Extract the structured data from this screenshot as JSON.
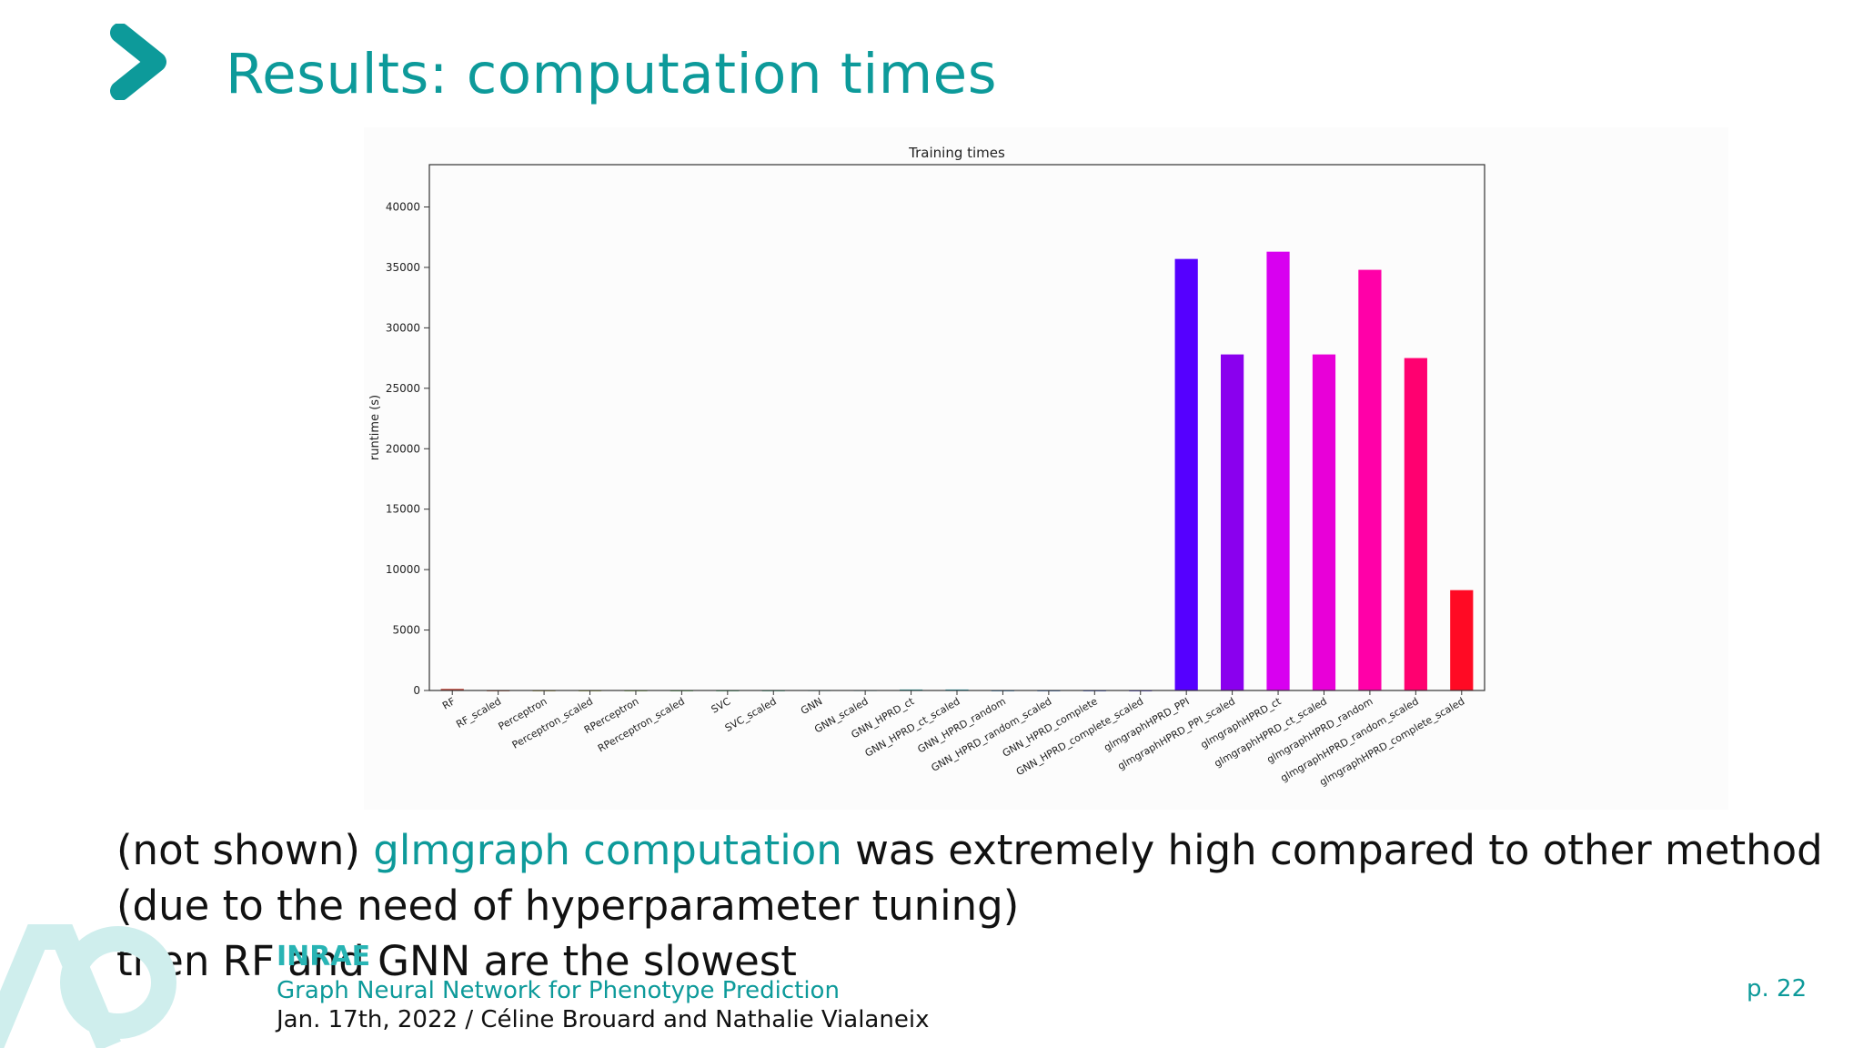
{
  "slide": {
    "title": "Results: computation times",
    "body_part1": "(not shown) ",
    "body_highlight": "glmgraph computation",
    "body_part2": " was extremely high compared to other method",
    "body_line2": "(due to the need of hyperparameter tuning)",
    "body_line3": "then RF and GNN are the slowest"
  },
  "footer": {
    "logo_text": "INRAE",
    "subtitle": "Graph Neural Network for Phenotype Prediction",
    "date_authors": "Jan. 17th, 2022 / Céline Brouard and Nathalie Vialaneix",
    "page": "p. 22"
  },
  "colors": {
    "accent": "#0d9a9a"
  },
  "chart_data": {
    "type": "bar",
    "title": "Training times",
    "xlabel": "",
    "ylabel": "runtime (s)",
    "ylim": [
      0,
      43500
    ],
    "yticks": [
      0,
      5000,
      10000,
      15000,
      20000,
      25000,
      30000,
      35000,
      40000
    ],
    "categories": [
      "RF",
      "RF_scaled",
      "Perceptron",
      "Perceptron_scaled",
      "RPerceptron",
      "RPerceptron_scaled",
      "SVC",
      "SVC_scaled",
      "GNN",
      "GNN_scaled",
      "GNN_HPRD_ct",
      "GNN_HPRD_ct_scaled",
      "GNN_HPRD_random",
      "GNN_HPRD_random_scaled",
      "GNN_HPRD_complete",
      "GNN_HPRD_complete_scaled",
      "glmgraphHPRD_PPI",
      "glmgraphHPRD_PPI_scaled",
      "glmgraphHPRD_ct",
      "glmgraphHPRD_ct_scaled",
      "glmgraphHPRD_random",
      "glmgraphHPRD_random_scaled",
      "glmgraphHPRD_complete_scaled"
    ],
    "values": [
      130,
      10,
      10,
      10,
      10,
      10,
      10,
      10,
      30,
      30,
      80,
      80,
      10,
      10,
      10,
      10,
      35700,
      27800,
      36300,
      27800,
      34800,
      27500,
      8300
    ],
    "bar_colors": [
      "#c0392b",
      "#c05030",
      "#b0a030",
      "#a0b030",
      "#80c040",
      "#50c050",
      "#40c070",
      "#40c090",
      "#30c0b0",
      "#30b0c0",
      "#20b0b0",
      "#20b0c0",
      "#3090e0",
      "#3070e0",
      "#3050e8",
      "#4030f0",
      "#5500ff",
      "#8a00ee",
      "#d800f0",
      "#e800d8",
      "#ff00a8",
      "#ff0070",
      "#ff0a24"
    ],
    "grid": false,
    "legend": "none"
  }
}
